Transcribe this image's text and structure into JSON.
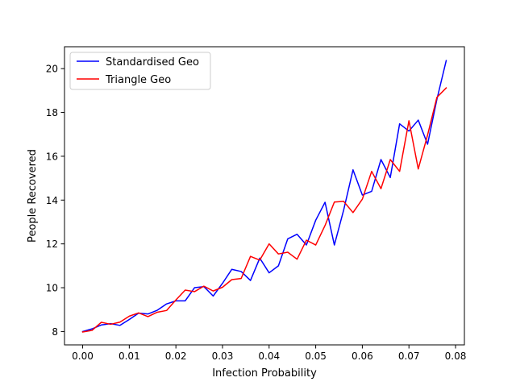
{
  "chart_data": {
    "type": "line",
    "title": "",
    "xlabel": "Infection Probability",
    "ylabel": "People Recovered",
    "xlim": [
      -0.0039,
      0.0819
    ],
    "ylim": [
      7.39,
      21.0
    ],
    "xticks": [
      0.0,
      0.01,
      0.02,
      0.03,
      0.04,
      0.05,
      0.06,
      0.07,
      0.08
    ],
    "xtick_labels": [
      "0.00",
      "0.01",
      "0.02",
      "0.03",
      "0.04",
      "0.05",
      "0.06",
      "0.07",
      "0.08"
    ],
    "yticks": [
      8,
      10,
      12,
      14,
      16,
      18,
      20
    ],
    "ytick_labels": [
      "8",
      "10",
      "12",
      "14",
      "16",
      "18",
      "20"
    ],
    "grid": false,
    "legend_position": "upper-left",
    "x": [
      0.0,
      0.002,
      0.004,
      0.006,
      0.008,
      0.01,
      0.012,
      0.014,
      0.016,
      0.018,
      0.02,
      0.022,
      0.024,
      0.026,
      0.028,
      0.03,
      0.032,
      0.034,
      0.036,
      0.038,
      0.04,
      0.042,
      0.044,
      0.046,
      0.048,
      0.05,
      0.052,
      0.054,
      0.056,
      0.058,
      0.06,
      0.062,
      0.064,
      0.066,
      0.068,
      0.07,
      0.072,
      0.074,
      0.076,
      0.078
    ],
    "series": [
      {
        "name": "Standardised Geo",
        "color": "#0000ff",
        "values": [
          8.0,
          8.12,
          8.3,
          8.36,
          8.28,
          8.55,
          8.84,
          8.8,
          8.97,
          9.26,
          9.4,
          9.4,
          10.0,
          10.05,
          9.62,
          10.2,
          10.84,
          10.74,
          10.33,
          11.35,
          10.68,
          11.0,
          12.23,
          12.44,
          11.95,
          13.08,
          13.9,
          11.95,
          13.55,
          15.38,
          14.23,
          14.4,
          15.85,
          15.03,
          17.48,
          17.15,
          17.65,
          16.55,
          18.6,
          20.37
        ]
      },
      {
        "name": "Triangle Geo",
        "color": "#ff0000",
        "values": [
          7.98,
          8.05,
          8.42,
          8.33,
          8.43,
          8.7,
          8.85,
          8.68,
          8.88,
          8.96,
          9.44,
          9.89,
          9.82,
          10.07,
          9.85,
          10.02,
          10.37,
          10.42,
          11.43,
          11.26,
          12.0,
          11.54,
          11.62,
          11.3,
          12.17,
          11.95,
          12.84,
          13.91,
          13.94,
          13.43,
          14.04,
          15.31,
          14.52,
          15.85,
          15.31,
          17.62,
          15.42,
          16.97,
          18.69,
          19.12
        ]
      }
    ]
  }
}
